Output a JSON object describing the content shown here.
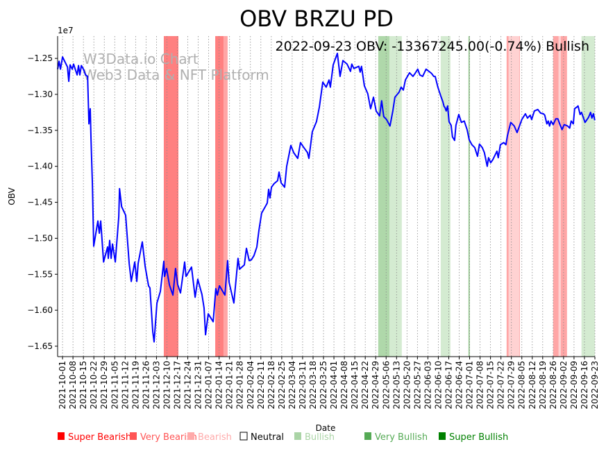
{
  "chart_data": {
    "type": "line",
    "title": "OBV BRZU PD",
    "annotation": "2022-09-23 OBV: -13367245.00(-0.74%) Bullish",
    "watermark": [
      "W3Data.io Chart",
      "Web3 Data & NFT Platform"
    ],
    "xlabel": "Date",
    "ylabel": "OBV",
    "y_offset_label": "1e7",
    "x_unit": "days since 2021-10-01",
    "xlim": [
      -3.3,
      357
    ],
    "ylim": [
      -1.6645,
      -1.219
    ],
    "grid": "vertical dotted",
    "x_ticks": [
      "2021-10-01",
      "2021-10-08",
      "2021-10-15",
      "2021-10-22",
      "2021-10-29",
      "2021-11-05",
      "2021-11-12",
      "2021-11-19",
      "2021-11-26",
      "2021-12-03",
      "2021-12-10",
      "2021-12-17",
      "2021-12-24",
      "2021-12-31",
      "2022-01-07",
      "2022-01-14",
      "2022-01-21",
      "2022-01-28",
      "2022-02-04",
      "2022-02-11",
      "2022-02-18",
      "2022-02-25",
      "2022-03-04",
      "2022-03-11",
      "2022-03-18",
      "2022-03-25",
      "2022-04-01",
      "2022-04-08",
      "2022-04-15",
      "2022-04-22",
      "2022-04-29",
      "2022-05-06",
      "2022-05-13",
      "2022-05-20",
      "2022-05-27",
      "2022-06-03",
      "2022-06-10",
      "2022-06-17",
      "2022-06-24",
      "2022-07-01",
      "2022-07-08",
      "2022-07-15",
      "2022-07-22",
      "2022-07-29",
      "2022-08-05",
      "2022-08-12",
      "2022-08-19",
      "2022-08-26",
      "2022-09-02",
      "2022-09-09",
      "2022-09-16",
      "2022-09-23"
    ],
    "y_ticks": [
      -1.25,
      -1.3,
      -1.35,
      -1.4,
      -1.45,
      -1.5,
      -1.55,
      -1.6,
      -1.65
    ],
    "y_tick_labels": [
      "−1.25",
      "−1.30",
      "−1.35",
      "−1.40",
      "−1.45",
      "−1.50",
      "−1.55",
      "−1.60",
      "−1.65"
    ],
    "series": [
      {
        "name": "OBV",
        "color": "#0000ff",
        "points": [
          [
            -3.3,
            -1.265
          ],
          [
            -2.3,
            -1.254
          ],
          [
            -1.4,
            -1.265
          ],
          [
            0,
            -1.248
          ],
          [
            1.9,
            -1.256
          ],
          [
            3.3,
            -1.262
          ],
          [
            4.2,
            -1.282
          ],
          [
            5.1,
            -1.259
          ],
          [
            6.5,
            -1.265
          ],
          [
            7.4,
            -1.258
          ],
          [
            9.8,
            -1.273
          ],
          [
            10.7,
            -1.26
          ],
          [
            11.6,
            -1.273
          ],
          [
            12.6,
            -1.26
          ],
          [
            14,
            -1.265
          ],
          [
            15.4,
            -1.273
          ],
          [
            16.8,
            -1.275
          ],
          [
            17.7,
            -1.341
          ],
          [
            18.6,
            -1.32
          ],
          [
            19.1,
            -1.362
          ],
          [
            20,
            -1.424
          ],
          [
            20.9,
            -1.511
          ],
          [
            22.8,
            -1.487
          ],
          [
            23.7,
            -1.476
          ],
          [
            24.7,
            -1.493
          ],
          [
            25.6,
            -1.476
          ],
          [
            27.5,
            -1.533
          ],
          [
            28.4,
            -1.526
          ],
          [
            30.2,
            -1.512
          ],
          [
            30.7,
            -1.528
          ],
          [
            31.6,
            -1.503
          ],
          [
            32.6,
            -1.528
          ],
          [
            33.5,
            -1.508
          ],
          [
            35.4,
            -1.533
          ],
          [
            37.7,
            -1.47
          ],
          [
            38.2,
            -1.431
          ],
          [
            39.6,
            -1.456
          ],
          [
            42.3,
            -1.468
          ],
          [
            44.7,
            -1.535
          ],
          [
            46.1,
            -1.56
          ],
          [
            48.4,
            -1.533
          ],
          [
            49.8,
            -1.56
          ],
          [
            50.7,
            -1.535
          ],
          [
            53.5,
            -1.505
          ],
          [
            55.4,
            -1.539
          ],
          [
            57.7,
            -1.566
          ],
          [
            58.6,
            -1.569
          ],
          [
            60.5,
            -1.63
          ],
          [
            61.4,
            -1.644
          ],
          [
            63.3,
            -1.59
          ],
          [
            65.6,
            -1.574
          ],
          [
            67.9,
            -1.532
          ],
          [
            68.4,
            -1.553
          ],
          [
            69.8,
            -1.542
          ],
          [
            71.7,
            -1.565
          ],
          [
            74,
            -1.579
          ],
          [
            75.8,
            -1.542
          ],
          [
            77.2,
            -1.564
          ],
          [
            79.1,
            -1.576
          ],
          [
            81.9,
            -1.533
          ],
          [
            82.8,
            -1.553
          ],
          [
            86.5,
            -1.54
          ],
          [
            88.9,
            -1.582
          ],
          [
            90.7,
            -1.557
          ],
          [
            93.5,
            -1.578
          ],
          [
            94.9,
            -1.597
          ],
          [
            95.9,
            -1.634
          ],
          [
            97.7,
            -1.605
          ],
          [
            101,
            -1.616
          ],
          [
            102.8,
            -1.57
          ],
          [
            103.8,
            -1.579
          ],
          [
            105.2,
            -1.566
          ],
          [
            108.9,
            -1.579
          ],
          [
            110.7,
            -1.531
          ],
          [
            111.7,
            -1.561
          ],
          [
            114.9,
            -1.59
          ],
          [
            117.7,
            -1.528
          ],
          [
            118.7,
            -1.543
          ],
          [
            121.9,
            -1.537
          ],
          [
            123.3,
            -1.514
          ],
          [
            125.2,
            -1.531
          ],
          [
            126.6,
            -1.53
          ],
          [
            128.4,
            -1.524
          ],
          [
            130.3,
            -1.512
          ],
          [
            131.7,
            -1.489
          ],
          [
            133.5,
            -1.465
          ],
          [
            135.4,
            -1.458
          ],
          [
            137.3,
            -1.451
          ],
          [
            138.2,
            -1.432
          ],
          [
            139.1,
            -1.444
          ],
          [
            140.1,
            -1.429
          ],
          [
            141.9,
            -1.424
          ],
          [
            144.2,
            -1.42
          ],
          [
            145.2,
            -1.408
          ],
          [
            146.6,
            -1.423
          ],
          [
            148.9,
            -1.429
          ],
          [
            150.3,
            -1.4
          ],
          [
            153.1,
            -1.371
          ],
          [
            155,
            -1.381
          ],
          [
            157.7,
            -1.389
          ],
          [
            159.6,
            -1.367
          ],
          [
            161.5,
            -1.373
          ],
          [
            164.3,
            -1.381
          ],
          [
            165.2,
            -1.389
          ],
          [
            167.5,
            -1.352
          ],
          [
            170.3,
            -1.338
          ],
          [
            172.2,
            -1.318
          ],
          [
            174.5,
            -1.283
          ],
          [
            176.8,
            -1.29
          ],
          [
            178.7,
            -1.28
          ],
          [
            179.6,
            -1.29
          ],
          [
            181.5,
            -1.259
          ],
          [
            184.3,
            -1.243
          ],
          [
            186.1,
            -1.275
          ],
          [
            188,
            -1.253
          ],
          [
            190.8,
            -1.258
          ],
          [
            193.1,
            -1.268
          ],
          [
            194,
            -1.258
          ],
          [
            195.4,
            -1.264
          ],
          [
            198.7,
            -1.261
          ],
          [
            199.6,
            -1.269
          ],
          [
            200.5,
            -1.261
          ],
          [
            202.4,
            -1.288
          ],
          [
            204.7,
            -1.299
          ],
          [
            206.6,
            -1.32
          ],
          [
            208.5,
            -1.304
          ],
          [
            210.3,
            -1.323
          ],
          [
            212.6,
            -1.33
          ],
          [
            214,
            -1.309
          ],
          [
            215.4,
            -1.331
          ],
          [
            217.3,
            -1.335
          ],
          [
            219.6,
            -1.344
          ],
          [
            221.5,
            -1.323
          ],
          [
            222.9,
            -1.304
          ],
          [
            225.7,
            -1.297
          ],
          [
            227.1,
            -1.29
          ],
          [
            228.5,
            -1.294
          ],
          [
            229.9,
            -1.28
          ],
          [
            232.7,
            -1.27
          ],
          [
            235,
            -1.275
          ],
          [
            236.4,
            -1.271
          ],
          [
            238.2,
            -1.265
          ],
          [
            239.6,
            -1.273
          ],
          [
            241.5,
            -1.275
          ],
          [
            243.8,
            -1.265
          ],
          [
            245.7,
            -1.268
          ],
          [
            247.5,
            -1.271
          ],
          [
            248.9,
            -1.275
          ],
          [
            249.9,
            -1.275
          ],
          [
            251.7,
            -1.29
          ],
          [
            253.6,
            -1.302
          ],
          [
            255,
            -1.31
          ],
          [
            255.9,
            -1.317
          ],
          [
            256.4,
            -1.318
          ],
          [
            257.3,
            -1.323
          ],
          [
            258.2,
            -1.316
          ],
          [
            259.2,
            -1.338
          ],
          [
            260.6,
            -1.343
          ],
          [
            261.5,
            -1.359
          ],
          [
            262.9,
            -1.364
          ],
          [
            263.8,
            -1.343
          ],
          [
            265.7,
            -1.328
          ],
          [
            267.5,
            -1.339
          ],
          [
            269.4,
            -1.337
          ],
          [
            270.3,
            -1.343
          ],
          [
            271.3,
            -1.349
          ],
          [
            272.7,
            -1.363
          ],
          [
            274.5,
            -1.37
          ],
          [
            276.4,
            -1.374
          ],
          [
            278.3,
            -1.386
          ],
          [
            279.6,
            -1.369
          ],
          [
            281.5,
            -1.374
          ],
          [
            282.9,
            -1.381
          ],
          [
            284.8,
            -1.4
          ],
          [
            285.7,
            -1.388
          ],
          [
            287.1,
            -1.395
          ],
          [
            288.5,
            -1.391
          ],
          [
            291.3,
            -1.379
          ],
          [
            292.2,
            -1.388
          ],
          [
            293.6,
            -1.37
          ],
          [
            295.9,
            -1.367
          ],
          [
            297.3,
            -1.37
          ],
          [
            298.3,
            -1.358
          ],
          [
            300.6,
            -1.339
          ],
          [
            302.9,
            -1.344
          ],
          [
            304.8,
            -1.353
          ],
          [
            306.6,
            -1.343
          ],
          [
            308,
            -1.335
          ],
          [
            310.4,
            -1.327
          ],
          [
            311.8,
            -1.333
          ],
          [
            313.6,
            -1.329
          ],
          [
            314.6,
            -1.335
          ],
          [
            316.4,
            -1.323
          ],
          [
            318.7,
            -1.321
          ],
          [
            320.6,
            -1.326
          ],
          [
            322.5,
            -1.327
          ],
          [
            323.4,
            -1.329
          ],
          [
            324.8,
            -1.341
          ],
          [
            325.7,
            -1.337
          ],
          [
            326.6,
            -1.344
          ],
          [
            327.6,
            -1.337
          ],
          [
            329,
            -1.342
          ],
          [
            330.8,
            -1.334
          ],
          [
            332.2,
            -1.334
          ],
          [
            333.6,
            -1.342
          ],
          [
            335,
            -1.349
          ],
          [
            336.4,
            -1.342
          ],
          [
            338.7,
            -1.344
          ],
          [
            340.1,
            -1.347
          ],
          [
            341.1,
            -1.337
          ],
          [
            342.5,
            -1.341
          ],
          [
            343.4,
            -1.32
          ],
          [
            345.3,
            -1.317
          ],
          [
            345.7,
            -1.316
          ],
          [
            347.1,
            -1.328
          ],
          [
            348,
            -1.325
          ],
          [
            350.4,
            -1.339
          ],
          [
            352.7,
            -1.332
          ],
          [
            354.1,
            -1.325
          ],
          [
            355,
            -1.333
          ],
          [
            356,
            -1.327
          ],
          [
            356.9,
            -1.336
          ]
        ]
      }
    ],
    "bands": [
      {
        "from": 67.9,
        "to": 77.7,
        "category": "Very Bearish",
        "color": "#ff8080"
      },
      {
        "from": 102.4,
        "to": 108,
        "category": "Very Bearish",
        "color": "#ff8080"
      },
      {
        "from": 108,
        "to": 110.7,
        "category": "Bearish",
        "color": "#ffa6a6"
      },
      {
        "from": 211.7,
        "to": 219.2,
        "category": "Very Bullish",
        "color": "#afd8aa"
      },
      {
        "from": 219.2,
        "to": 227.5,
        "category": "Bullish",
        "color": "#d4ebd1"
      },
      {
        "from": 253.6,
        "to": 260.1,
        "category": "Bullish",
        "color": "#d4ebd1"
      },
      {
        "from": 272.2,
        "to": 273.1,
        "category": "Very Bullish",
        "color": "#9ccb96"
      },
      {
        "from": 297.8,
        "to": 299.2,
        "category": "Bearish",
        "color": "#ffa6a6"
      },
      {
        "from": 299.2,
        "to": 306.2,
        "category": "Bearish",
        "color": "#ffd2d2"
      },
      {
        "from": 306.2,
        "to": 306.6,
        "category": "Bearish",
        "color": "#ffa6a6"
      },
      {
        "from": 329,
        "to": 332.7,
        "category": "Bearish",
        "color": "#ffa6a6"
      },
      {
        "from": 332.7,
        "to": 334.1,
        "category": "Bearish",
        "color": "#ffd2d2"
      },
      {
        "from": 334.1,
        "to": 338.3,
        "category": "Bearish",
        "color": "#ffa6a6"
      },
      {
        "from": 348,
        "to": 357,
        "category": "Bullish",
        "color": "#d4ebd1"
      }
    ],
    "legend": {
      "placement": "bottom",
      "items": [
        {
          "label": "Super Bearish",
          "color": "#ff0000",
          "text_color": "#ff0000"
        },
        {
          "label": "Very Bearish",
          "color": "#ff5555",
          "text_color": "#ff5555"
        },
        {
          "label": "Bearish",
          "color": "#ffaaaa",
          "text_color": "#ffaaaa"
        },
        {
          "label": "Neutral",
          "color": "#ffffff",
          "text_color": "#000000"
        },
        {
          "label": "Bullish",
          "color": "#aad4a6",
          "text_color": "#aad4a6"
        },
        {
          "label": "Very Bullish",
          "color": "#55aa55",
          "text_color": "#55aa55"
        },
        {
          "label": "Super Bullish",
          "color": "#008000",
          "text_color": "#008000"
        }
      ]
    }
  }
}
